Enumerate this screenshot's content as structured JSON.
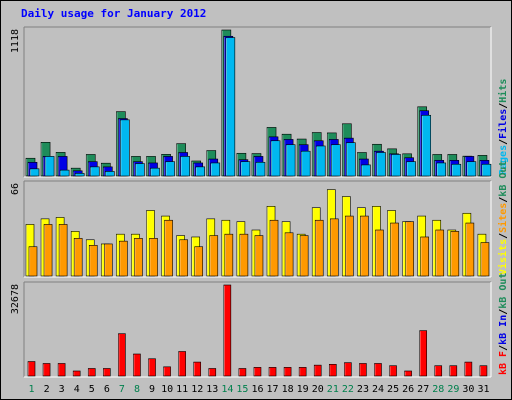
{
  "chart_data": {
    "title": "Daily usage for January 2012",
    "categories": [
      "1",
      "2",
      "3",
      "4",
      "5",
      "6",
      "7",
      "8",
      "9",
      "10",
      "11",
      "12",
      "13",
      "14",
      "15",
      "16",
      "17",
      "18",
      "19",
      "20",
      "21",
      "22",
      "23",
      "24",
      "25",
      "26",
      "27",
      "28",
      "29",
      "30",
      "31"
    ],
    "weekend_days": [
      "1",
      "7",
      "8",
      "14",
      "15",
      "21",
      "22",
      "28",
      "29"
    ],
    "colors": {
      "title": "#0000ff",
      "background": "#c0c0c0",
      "plot_background": "#c0c0c0",
      "weekday_label": "#000000",
      "weekend_label": "#00804d",
      "hits": "#1e8c5a",
      "files": "#0000e6",
      "pages": "#00b8f0",
      "visits": "#ffff00",
      "sites": "#ff9900",
      "kb_out": "#1e8c5a",
      "kb_in": "#0000e6",
      "kb_f": "#ff0000"
    },
    "charts": [
      {
        "type": "bar",
        "ymax_label": "1118",
        "ylim": [
          0,
          1118
        ],
        "legend": [
          {
            "text": "Pages",
            "color": "#00b8f0"
          },
          {
            "text": "/",
            "color": "#000000"
          },
          {
            "text": "Files",
            "color": "#0000e6"
          },
          {
            "text": "/",
            "color": "#000000"
          },
          {
            "text": "Hits",
            "color": "#1e8c5a"
          }
        ],
        "series": [
          {
            "key": "hits",
            "values": [
              136,
              258,
              181,
              60,
              165,
              98,
              493,
              150,
              150,
              166,
              248,
              115,
              195,
              1118,
              174,
              172,
              372,
              320,
              283,
              333,
              330,
              400,
              180,
              243,
              208,
              170,
              530,
              165,
              165,
              152,
              158
            ]
          },
          {
            "key": "files",
            "values": [
              105,
              150,
              150,
              40,
              110,
              70,
              440,
              110,
              100,
              150,
              180,
              100,
              130,
              1070,
              125,
              150,
              300,
              280,
              240,
              270,
              280,
              290,
              130,
              190,
              170,
              140,
              500,
              120,
              120,
              150,
              120
            ]
          },
          {
            "key": "pages",
            "values": [
              55,
              150,
              45,
              20,
              70,
              35,
              430,
              95,
              60,
              110,
              150,
              70,
              100,
              1060,
              110,
              105,
              270,
              240,
              190,
              230,
              240,
              255,
              85,
              180,
              165,
              110,
              465,
              100,
              90,
              110,
              90
            ]
          }
        ]
      },
      {
        "type": "bar",
        "ymax_label": "66",
        "ylim": [
          0,
          66
        ],
        "legend": [
          {
            "text": "Visits",
            "color": "#ffff00"
          },
          {
            "text": "/",
            "color": "#000000"
          },
          {
            "text": "Sites",
            "color": "#ff9900"
          },
          {
            "text": "/",
            "color": "#000000"
          },
          {
            "text": "kB Out",
            "color": "#1e8c5a"
          }
        ],
        "series": [
          {
            "key": "visits",
            "values": [
              37,
              41,
              42,
              32,
              26,
              23,
              30,
              30,
              47,
              43,
              29,
              28,
              41,
              40,
              39,
              33,
              50,
              39,
              30,
              49,
              62,
              57,
              49,
              50,
              47,
              39,
              43,
              40,
              33,
              45,
              30
            ]
          },
          {
            "key": "sites",
            "values": [
              21,
              37,
              37,
              27,
              22,
              23,
              25,
              27,
              27,
              40,
              26,
              21,
              29,
              30,
              30,
              29,
              40,
              31,
              29,
              40,
              41,
              43,
              43,
              33,
              38,
              39,
              28,
              33,
              32,
              38,
              24
            ]
          }
        ]
      },
      {
        "type": "bar",
        "ymax_label": "32678",
        "ylim": [
          0,
          32678
        ],
        "legend": [
          {
            "text": "kB F",
            "color": "#ff0000"
          },
          {
            "text": "/",
            "color": "#000000"
          },
          {
            "text": "kB In",
            "color": "#0000e6"
          },
          {
            "text": "/",
            "color": "#000000"
          },
          {
            "text": "kB Out",
            "color": "#1e8c5a"
          }
        ],
        "series": [
          {
            "key": "kb_f",
            "values": [
              5200,
              4500,
              4500,
              1800,
              2700,
              2700,
              15200,
              7900,
              6200,
              3300,
              8800,
              5000,
              2700,
              32678,
              2700,
              3100,
              3100,
              3100,
              3100,
              3900,
              4200,
              4800,
              4500,
              4500,
              3700,
              1800,
              16300,
              3700,
              3700,
              5000,
              3700
            ]
          }
        ]
      }
    ]
  }
}
